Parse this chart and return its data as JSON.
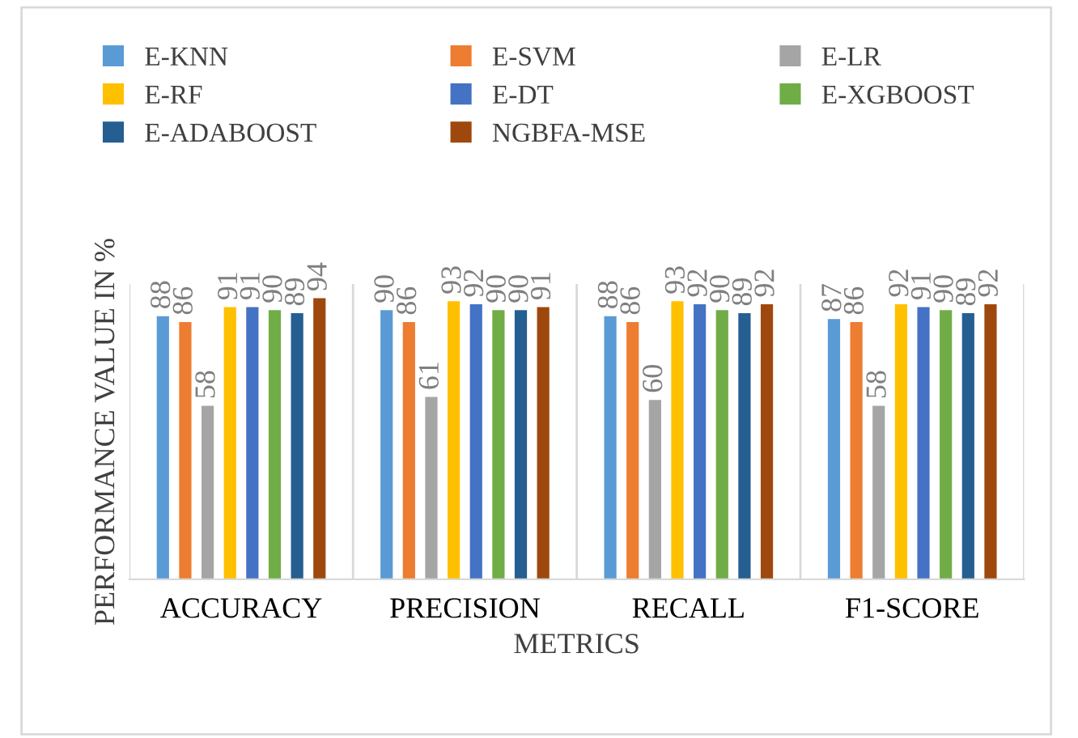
{
  "chart_data": {
    "type": "bar",
    "xlabel": "METRICS",
    "ylabel": "PERFORMANCE VALUE IN %",
    "categories": [
      "ACCURACY",
      "PRECISION",
      "RECALL",
      "F1-SCORE"
    ],
    "series": [
      {
        "name": "E-KNN",
        "color": "#5b9bd5",
        "values": [
          88,
          90,
          88,
          87
        ]
      },
      {
        "name": "E-SVM",
        "color": "#ed7d31",
        "values": [
          86,
          86,
          86,
          86
        ]
      },
      {
        "name": "E-LR",
        "color": "#a5a5a5",
        "values": [
          58,
          61,
          60,
          58
        ]
      },
      {
        "name": "E-RF",
        "color": "#ffc000",
        "values": [
          91,
          93,
          93,
          92
        ]
      },
      {
        "name": "E-DT",
        "color": "#4472c4",
        "values": [
          91,
          92,
          92,
          91
        ]
      },
      {
        "name": "E-XGBOOST",
        "color": "#70ad47",
        "values": [
          90,
          90,
          90,
          90
        ]
      },
      {
        "name": "E-ADABOOST",
        "color": "#255e91",
        "values": [
          89,
          90,
          89,
          89
        ]
      },
      {
        "name": "NGBFA-MSE",
        "color": "#9e480e",
        "values": [
          94,
          91,
          92,
          92
        ]
      }
    ],
    "data_labels": true,
    "grid": "x",
    "legend": "top"
  }
}
